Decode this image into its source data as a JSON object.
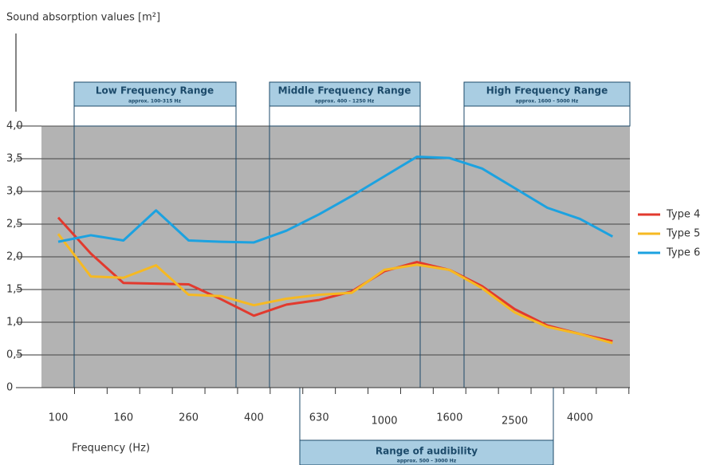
{
  "chart_data": {
    "type": "line",
    "title": "Sound absorption values [m²]",
    "xlabel": "Frequency (Hz)",
    "categories": [
      "100",
      null,
      "160",
      null,
      "260",
      null,
      "400",
      null,
      "630",
      null,
      "1000",
      null,
      "1600",
      null,
      "2500",
      null,
      "4000",
      null
    ],
    "series": [
      {
        "name": "Type 4",
        "color": "#e23a2e",
        "values": [
          2.6,
          2.05,
          1.6,
          1.59,
          1.58,
          1.35,
          1.1,
          1.27,
          1.34,
          1.47,
          1.78,
          1.92,
          1.8,
          1.55,
          1.2,
          0.95,
          0.82,
          0.71
        ]
      },
      {
        "name": "Type 5",
        "color": "#f6b922",
        "values": [
          2.35,
          1.7,
          1.68,
          1.87,
          1.42,
          1.4,
          1.26,
          1.36,
          1.42,
          1.45,
          1.8,
          1.88,
          1.8,
          1.52,
          1.15,
          0.93,
          0.82,
          0.68
        ]
      },
      {
        "name": "Type 6",
        "color": "#1ca2e0",
        "values": [
          2.23,
          2.33,
          2.25,
          2.71,
          2.25,
          2.23,
          2.22,
          2.4,
          2.65,
          2.93,
          3.23,
          3.53,
          3.51,
          3.35,
          3.05,
          2.75,
          2.58,
          2.31
        ]
      }
    ],
    "ylim": [
      0,
      4
    ],
    "yticks": [
      0,
      {
        "value": 0.5,
        "label": "0,5"
      },
      {
        "value": 1,
        "label": "1,0"
      },
      {
        "value": 1.5,
        "label": "1,5"
      },
      {
        "value": 2,
        "label": "2,0"
      },
      {
        "value": 2.5,
        "label": "2,5"
      },
      {
        "value": 3,
        "label": "3,0"
      },
      {
        "value": 3.5,
        "label": "3,5"
      },
      {
        "value": 4,
        "label": "4,0"
      }
    ],
    "grid": true,
    "legend": "right",
    "annotations": [
      {
        "text": "Low Frequency Range",
        "subtext": "approx. 100-315 Hz"
      },
      {
        "text": "Middle Frequency Range",
        "subtext": "approx. 400 - 1250 Hz"
      },
      {
        "text": "High Frequency Range",
        "subtext": "approx. 1600 - 5000 Hz"
      },
      {
        "text": "Range of audibility",
        "subtext": "approx. 500 - 3000 Hz"
      }
    ]
  }
}
